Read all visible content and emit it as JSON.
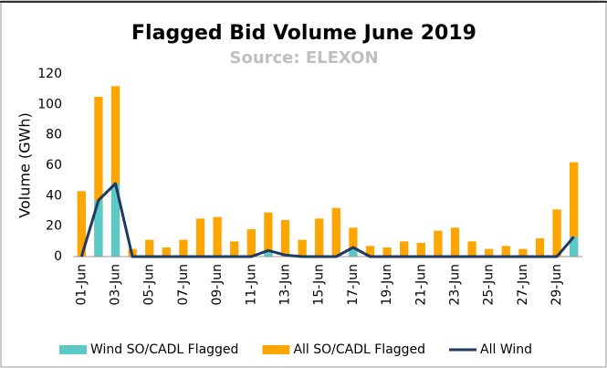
{
  "chart_data": {
    "type": "bar_line",
    "title": "Flagged Bid Volume June 2019",
    "subtitle": "Source: ELEXON",
    "y_label": "Volume (GWh)",
    "categories": [
      "01-Jun",
      null,
      "03-Jun",
      null,
      "05-Jun",
      null,
      "07-Jun",
      null,
      "09-Jun",
      null,
      "11-Jun",
      null,
      "13-Jun",
      null,
      "15-Jun",
      null,
      "17-Jun",
      null,
      "19-Jun",
      null,
      "21-Jun",
      null,
      "23-Jun",
      null,
      "25-Jun",
      null,
      "27-Jun",
      null,
      "29-Jun",
      null
    ],
    "series": [
      {
        "name": "Wind SO/CADL Flagged",
        "type": "bar",
        "color": "#5cc8c8",
        "values": [
          0,
          37,
          48,
          0,
          0,
          0,
          0,
          0,
          0,
          0,
          0,
          3,
          0,
          0,
          0,
          0,
          6,
          0,
          0,
          0,
          0,
          0,
          0,
          0,
          0,
          0,
          0,
          0,
          0,
          13
        ]
      },
      {
        "name": "All SO/CADL Flagged",
        "type": "bar",
        "color": "#ffa500",
        "values": [
          43,
          105,
          112,
          5,
          11,
          6,
          11,
          25,
          26,
          10,
          18,
          29,
          24,
          11,
          25,
          32,
          19,
          7,
          6,
          10,
          9,
          17,
          19,
          10,
          5,
          7,
          5,
          12,
          31,
          62
        ]
      },
      {
        "name": "All Wind",
        "type": "line",
        "color": "#1f3864",
        "values": [
          0,
          37,
          48,
          0,
          0,
          0,
          0,
          0,
          0,
          0,
          0,
          4,
          1,
          0,
          0,
          0,
          6,
          0,
          0,
          0,
          0,
          0,
          0,
          0,
          0,
          0,
          0,
          0,
          0,
          13
        ]
      }
    ],
    "ylim": [
      0,
      120
    ],
    "yticks": [
      0,
      20,
      40,
      60,
      80,
      100,
      120
    ],
    "grid": false,
    "legend": "bottom"
  }
}
